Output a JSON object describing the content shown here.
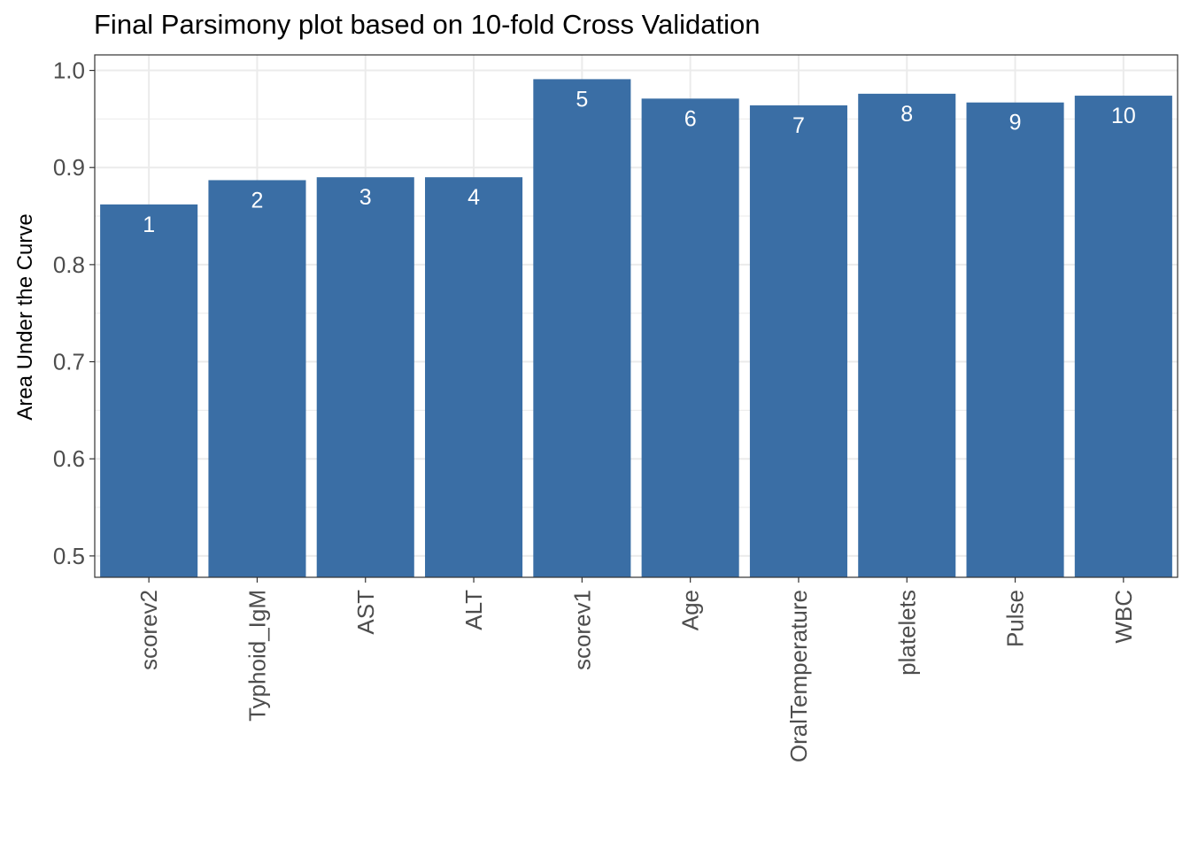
{
  "chart_data": {
    "type": "bar",
    "title": "Final Parsimony plot based on 10-fold Cross Validation",
    "xlabel": "",
    "ylabel": "Area Under the Curve",
    "categories": [
      "scorev2",
      "Typhoid_IgM",
      "AST",
      "ALT",
      "scorev1",
      "Age",
      "OralTemperature",
      "platelets",
      "Pulse",
      "WBC"
    ],
    "values": [
      0.862,
      0.887,
      0.89,
      0.89,
      0.991,
      0.971,
      0.964,
      0.976,
      0.967,
      0.974
    ],
    "bar_labels": [
      "1",
      "2",
      "3",
      "4",
      "5",
      "6",
      "7",
      "8",
      "9",
      "10"
    ],
    "yticks": [
      0.5,
      0.6,
      0.7,
      0.8,
      0.9,
      1.0
    ],
    "ytick_labels": [
      "0.5",
      "0.6",
      "0.7",
      "0.8",
      "0.9",
      "1.0"
    ],
    "ylim": [
      0.478,
      1.016
    ],
    "grid": true,
    "legend": "none",
    "bar_color": "#3a6ea5"
  }
}
